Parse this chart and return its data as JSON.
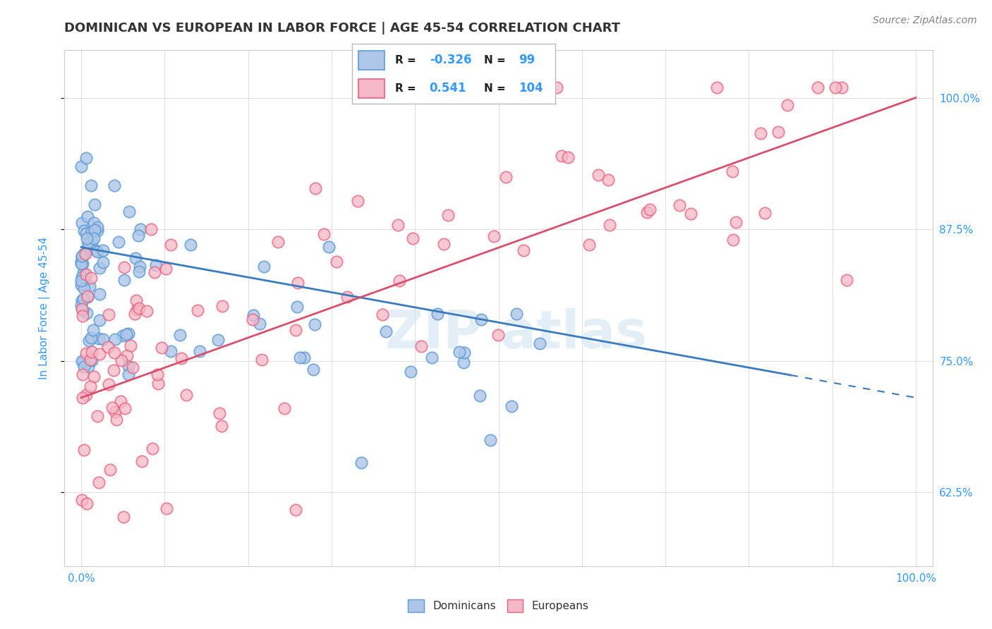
{
  "title": "DOMINICAN VS EUROPEAN IN LABOR FORCE | AGE 45-54 CORRELATION CHART",
  "source": "Source: ZipAtlas.com",
  "ylabel": "In Labor Force | Age 45-54",
  "xlim": [
    -0.02,
    1.02
  ],
  "ylim": [
    0.555,
    1.045
  ],
  "ytick_labels": [
    "62.5%",
    "75.0%",
    "87.5%",
    "100.0%"
  ],
  "ytick_values": [
    0.625,
    0.75,
    0.875,
    1.0
  ],
  "xtick_labels": [
    "0.0%",
    "100.0%"
  ],
  "xtick_values": [
    0.0,
    1.0
  ],
  "legend_labels": [
    "Dominicans",
    "Europeans"
  ],
  "dominican_fill": "#aec6e8",
  "dominican_edge": "#5b9bd5",
  "european_fill": "#f5b8c8",
  "european_edge": "#e8607a",
  "dominican_line_color": "#3a7abf",
  "european_line_color": "#d94f6e",
  "r_dominican": -0.326,
  "n_dominican": 99,
  "r_european": 0.541,
  "n_european": 104,
  "background_color": "#ffffff",
  "grid_color": "#e0e0e0",
  "title_color": "#333333",
  "axis_label_color": "#3399ff",
  "tick_label_color": "#3399ff",
  "source_color": "#808080",
  "watermark_color": "#c8dff0",
  "dom_line_y_start": 0.858,
  "dom_line_y_end": 0.715,
  "eur_line_y_start": 0.715,
  "eur_line_y_end": 1.0
}
